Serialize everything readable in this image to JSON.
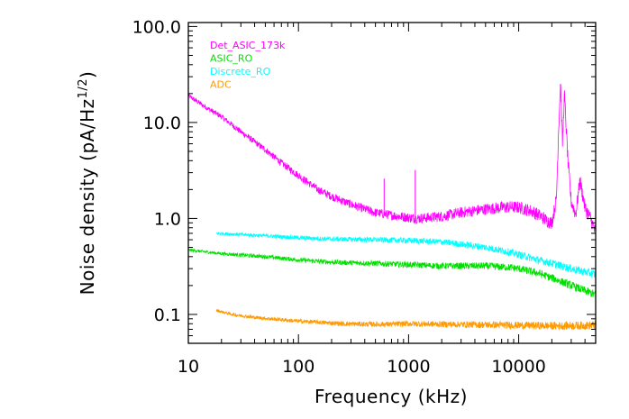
{
  "chart_data": {
    "type": "line",
    "xlabel": "Frequency (kHz)",
    "ylabel": "Noise density (pA/Hz",
    "ylabel_sup": "1/2",
    "ylabel_close": ")",
    "x_scale": "log",
    "y_scale": "log",
    "xlim": [
      10,
      50000
    ],
    "ylim": [
      0.05,
      110
    ],
    "x_ticks": [
      {
        "value": 10,
        "label": "10"
      },
      {
        "value": 100,
        "label": "100"
      },
      {
        "value": 1000,
        "label": "1000"
      },
      {
        "value": 10000,
        "label": "10000"
      }
    ],
    "y_ticks": [
      {
        "value": 0.1,
        "label": "0.1"
      },
      {
        "value": 1,
        "label": "1.0"
      },
      {
        "value": 10,
        "label": "10.0"
      },
      {
        "value": 100,
        "label": "100.0"
      }
    ],
    "grid": false,
    "legend_position": "top-left",
    "series": [
      {
        "name": "Det_ASIC_173k",
        "color": "#ff00ff",
        "noise": 0.05,
        "x": [
          10,
          15,
          20,
          30,
          50,
          70,
          100,
          150,
          200,
          300,
          400,
          500,
          700,
          1000,
          1200,
          1500,
          2000,
          3000,
          5000,
          8000,
          10000,
          13000,
          16000,
          18000,
          20000,
          22000,
          23000,
          24000,
          25000,
          26000,
          28000,
          30000,
          33000,
          36000,
          40000,
          45000,
          50000
        ],
        "y": [
          19,
          14,
          11.5,
          8,
          5.2,
          3.8,
          2.8,
          2.0,
          1.7,
          1.4,
          1.25,
          1.15,
          1.08,
          1.02,
          1.0,
          1.02,
          1.05,
          1.15,
          1.25,
          1.32,
          1.3,
          1.2,
          1.05,
          0.95,
          0.9,
          1.6,
          8.0,
          27,
          6,
          20,
          4,
          1.5,
          1.1,
          2.5,
          1.3,
          1.0,
          0.7
        ],
        "spikes": [
          {
            "x": 600,
            "y": 2.6
          },
          {
            "x": 1150,
            "y": 3.2
          }
        ]
      },
      {
        "name": "ASIC_RO",
        "color": "#00e000",
        "noise": 0.03,
        "x": [
          10,
          20,
          50,
          100,
          200,
          500,
          1000,
          2000,
          5000,
          8000,
          10000,
          15000,
          20000,
          30000,
          50000
        ],
        "y": [
          0.47,
          0.43,
          0.4,
          0.37,
          0.35,
          0.34,
          0.33,
          0.32,
          0.32,
          0.31,
          0.3,
          0.27,
          0.24,
          0.2,
          0.16
        ]
      },
      {
        "name": "Discrete_RO",
        "color": "#00ffff",
        "noise": 0.03,
        "x": [
          18,
          30,
          50,
          100,
          200,
          500,
          1000,
          2000,
          5000,
          8000,
          10000,
          15000,
          20000,
          30000,
          50000
        ],
        "y": [
          0.7,
          0.68,
          0.66,
          0.63,
          0.61,
          0.6,
          0.59,
          0.57,
          0.5,
          0.45,
          0.42,
          0.37,
          0.34,
          0.3,
          0.26
        ]
      },
      {
        "name": "ADC",
        "color": "#ff9900",
        "noise": 0.03,
        "x": [
          18,
          25,
          40,
          70,
          100,
          150,
          250,
          400,
          700,
          1000,
          2000,
          5000,
          10000,
          20000,
          50000
        ],
        "y": [
          0.11,
          0.1,
          0.093,
          0.088,
          0.085,
          0.083,
          0.08,
          0.079,
          0.079,
          0.08,
          0.079,
          0.078,
          0.077,
          0.076,
          0.077
        ]
      }
    ]
  }
}
